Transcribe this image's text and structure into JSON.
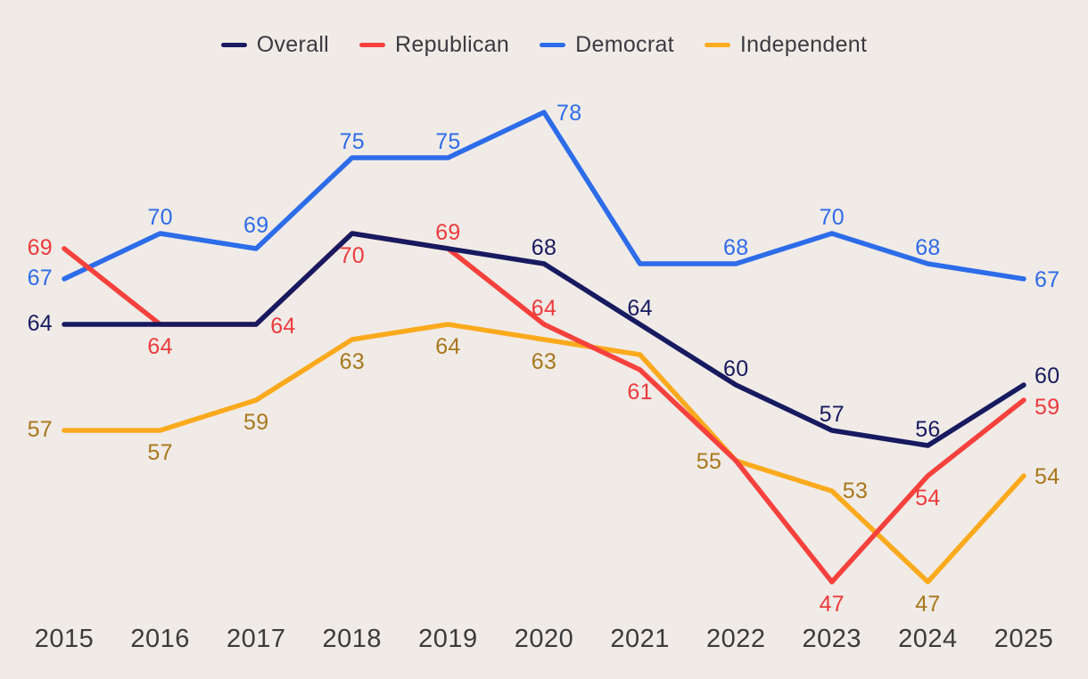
{
  "page": {
    "background": "#f0ebe7",
    "legend_text_color": "#3a3a40",
    "axis_text_color": "#3b3b3b"
  },
  "legend": {
    "items": [
      {
        "id": "overall",
        "label": "Overall",
        "color": "#181a60"
      },
      {
        "id": "republican",
        "label": "Republican",
        "color": "#f6413d"
      },
      {
        "id": "democrat",
        "label": "Democrat",
        "color": "#2d6ce9"
      },
      {
        "id": "independent",
        "label": "Independent",
        "color": "#fbaa1d"
      }
    ]
  },
  "chart_data": {
    "type": "line",
    "title": "",
    "xlabel": "",
    "ylabel": "",
    "x": [
      2015,
      2016,
      2017,
      2018,
      2019,
      2020,
      2021,
      2022,
      2023,
      2024,
      2025
    ],
    "x_labels": [
      "2015",
      "2016",
      "2017",
      "2018",
      "2019",
      "2020",
      "2021",
      "2022",
      "2023",
      "2024",
      "2025"
    ],
    "ylim": [
      44,
      80
    ],
    "grid": false,
    "y_axis_shown": false,
    "legend_position": "top-center",
    "point_labels_shown": true,
    "series": [
      {
        "name": "Democrat",
        "color": "#2d6ce9",
        "label_color": "#2d6ce9",
        "values": [
          67,
          70,
          69,
          75,
          75,
          78,
          68,
          68,
          70,
          68,
          67
        ],
        "labels": [
          {
            "pos": "left"
          },
          {
            "pos": "above"
          },
          {
            "pos": "above",
            "dy": -18
          },
          {
            "pos": "above"
          },
          {
            "pos": "above"
          },
          {
            "pos": "right",
            "dx": 14,
            "dy": 9
          },
          null,
          {
            "pos": "above"
          },
          {
            "pos": "above"
          },
          {
            "pos": "above"
          },
          {
            "pos": "right"
          }
        ]
      },
      {
        "name": "Independent",
        "color": "#fbaa1d",
        "label_color": "#a9771b",
        "values": [
          57,
          57,
          59,
          63,
          64,
          63,
          62,
          55,
          53,
          47,
          54
        ],
        "labels": [
          {
            "pos": "left"
          },
          {
            "pos": "below"
          },
          {
            "pos": "below"
          },
          {
            "pos": "below"
          },
          {
            "pos": "below"
          },
          {
            "pos": "below"
          },
          null,
          {
            "pos": "left",
            "dx": -16,
            "dy": 9
          },
          {
            "pos": "right",
            "dx": 12,
            "dy": 8
          },
          {
            "pos": "below"
          },
          {
            "pos": "right"
          }
        ]
      },
      {
        "name": "Republican",
        "color": "#f6413d",
        "label_color": "#ee3a3c",
        "values": [
          69,
          64,
          64,
          70,
          69,
          64,
          61,
          55,
          47,
          54,
          59
        ],
        "labels": [
          {
            "pos": "left"
          },
          {
            "pos": "below"
          },
          {
            "pos": "right",
            "dx": 16,
            "dy": 10
          },
          {
            "pos": "below"
          },
          {
            "pos": "above"
          },
          {
            "pos": "above"
          },
          {
            "pos": "below"
          },
          null,
          {
            "pos": "below"
          },
          {
            "pos": "below"
          },
          {
            "pos": "right",
            "dx": 12,
            "dy": 16
          }
        ]
      },
      {
        "name": "Overall",
        "color": "#181a60",
        "label_color": "#181a60",
        "values": [
          64,
          64,
          64,
          70,
          69,
          68,
          64,
          60,
          57,
          56,
          60
        ],
        "labels": [
          {
            "pos": "left"
          },
          null,
          null,
          null,
          null,
          {
            "pos": "above"
          },
          {
            "pos": "above"
          },
          {
            "pos": "above"
          },
          {
            "pos": "above"
          },
          {
            "pos": "above"
          },
          {
            "pos": "right",
            "dx": 12,
            "dy": -2
          }
        ]
      }
    ]
  }
}
